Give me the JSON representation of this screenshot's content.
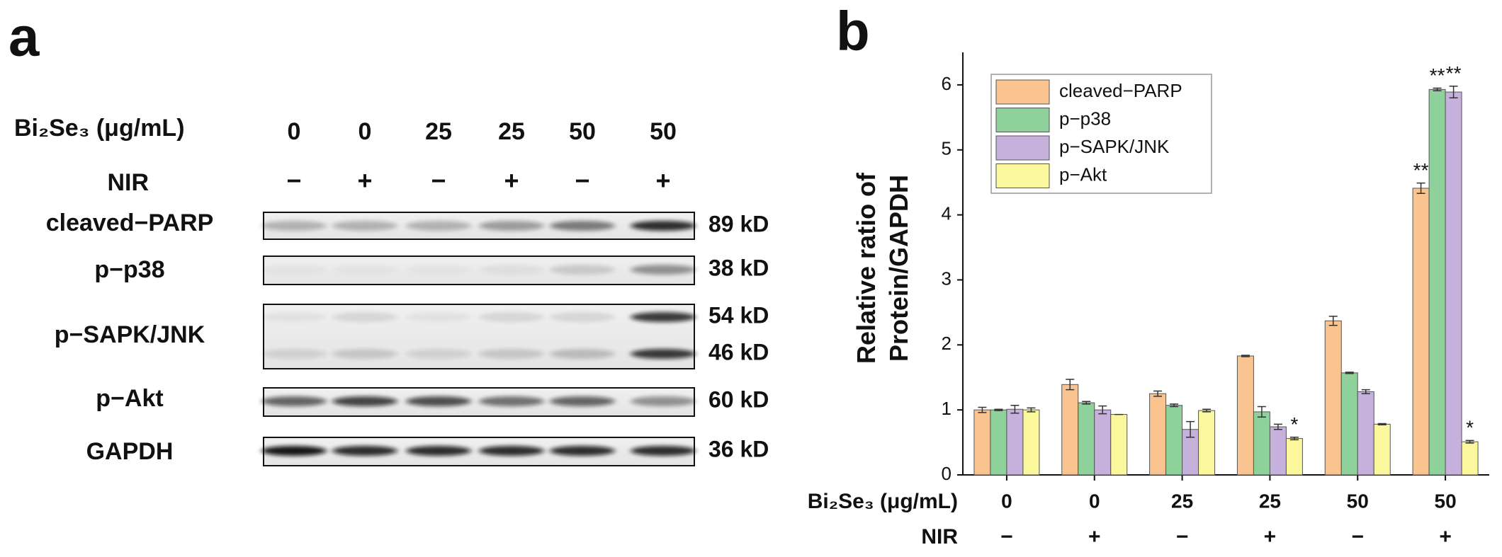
{
  "panel_a": {
    "label": "a",
    "dose_label": "Bi₂Se₃ (μg/mL)",
    "doses": [
      "0",
      "0",
      "25",
      "25",
      "50",
      "50"
    ],
    "nir_label": "NIR",
    "nir": [
      "−",
      "+",
      "−",
      "+",
      "−",
      "+"
    ],
    "blots": [
      {
        "name": "cleaved−PARP",
        "sizes": [
          "89 kD"
        ]
      },
      {
        "name": "p−p38",
        "sizes": [
          "38 kD"
        ]
      },
      {
        "name": "p−SAPK/JNK",
        "sizes": [
          "54 kD",
          "46 kD"
        ]
      },
      {
        "name": "p−Akt",
        "sizes": [
          "60 kD"
        ]
      },
      {
        "name": "GAPDH",
        "sizes": [
          "36 kD"
        ]
      }
    ]
  },
  "chart_data": {
    "type": "bar",
    "label": "b",
    "ylabel": [
      "Relative ratio of",
      "Protein/GAPDH"
    ],
    "x_row_labels": [
      "Bi₂Se₃ (μg/mL)",
      "NIR"
    ],
    "categories": [
      "0",
      "0",
      "25",
      "25",
      "50",
      "50"
    ],
    "nir": [
      "−",
      "+",
      "−",
      "+",
      "−",
      "+"
    ],
    "ylim": [
      0,
      6.5
    ],
    "yticks": [
      0,
      1,
      2,
      3,
      4,
      5,
      6
    ],
    "legend": "top-left",
    "series": [
      {
        "name": "cleaved−PARP",
        "color": "#f9c48f",
        "values": [
          1.0,
          1.39,
          1.25,
          1.83,
          2.37,
          4.41
        ],
        "errors": [
          0.04,
          0.08,
          0.04,
          0.01,
          0.07,
          0.08
        ],
        "sig_labels": [
          null,
          null,
          null,
          null,
          null,
          "**"
        ]
      },
      {
        "name": "p−p38",
        "color": "#8fd19a",
        "values": [
          1.0,
          1.11,
          1.07,
          0.97,
          1.57,
          5.93
        ],
        "errors": [
          0.01,
          0.02,
          0.02,
          0.08,
          0.01,
          0.02
        ],
        "sig_labels": [
          null,
          null,
          null,
          null,
          null,
          "**"
        ]
      },
      {
        "name": "p−SAPK/JNK",
        "color": "#c6b0dc",
        "values": [
          1.01,
          1.0,
          0.7,
          0.74,
          1.28,
          5.89
        ],
        "errors": [
          0.06,
          0.06,
          0.12,
          0.04,
          0.03,
          0.09
        ],
        "sig_labels": [
          null,
          null,
          null,
          null,
          null,
          "**"
        ]
      },
      {
        "name": "p−Akt",
        "color": "#fbf79c",
        "values": [
          1.0,
          0.93,
          0.99,
          0.56,
          0.78,
          0.51
        ],
        "errors": [
          0.03,
          0.0,
          0.02,
          0.02,
          0.01,
          0.02
        ],
        "sig_labels": [
          null,
          null,
          null,
          "*",
          null,
          "*"
        ]
      }
    ]
  }
}
